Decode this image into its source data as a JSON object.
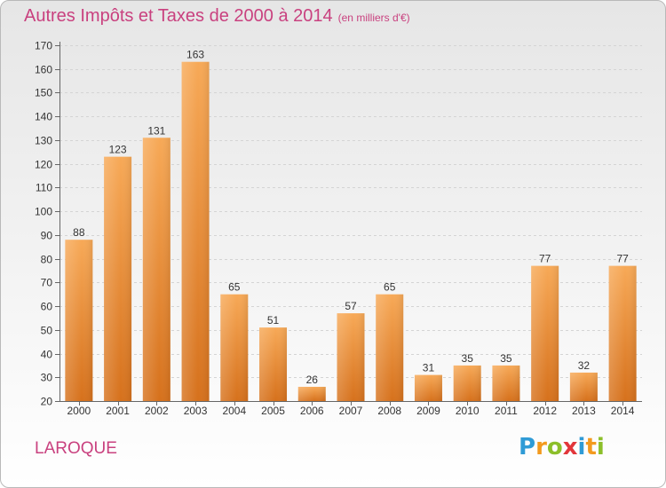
{
  "title": "Autres Impôts et Taxes de 2000 à 2014",
  "subtitle": "(en milliers d'€)",
  "location": "LAROQUE",
  "logo_text": "Proxiti",
  "colors": {
    "title": "#c9417f",
    "bar_light": "#f6a453",
    "bar_dark": "#d9741f",
    "axis": "#555555",
    "grid": "#d2d2d2"
  },
  "chart_data": {
    "type": "bar",
    "categories": [
      "2000",
      "2001",
      "2002",
      "2003",
      "2004",
      "2005",
      "2006",
      "2007",
      "2008",
      "2009",
      "2010",
      "2011",
      "2012",
      "2013",
      "2014"
    ],
    "values": [
      88,
      123,
      131,
      163,
      65,
      51,
      26,
      57,
      65,
      31,
      35,
      35,
      77,
      32,
      77
    ],
    "ylim": [
      20,
      170
    ],
    "yticks": [
      20,
      30,
      40,
      50,
      60,
      70,
      80,
      90,
      100,
      110,
      120,
      130,
      140,
      150,
      160,
      170
    ],
    "grid": true,
    "data_labels": true
  }
}
